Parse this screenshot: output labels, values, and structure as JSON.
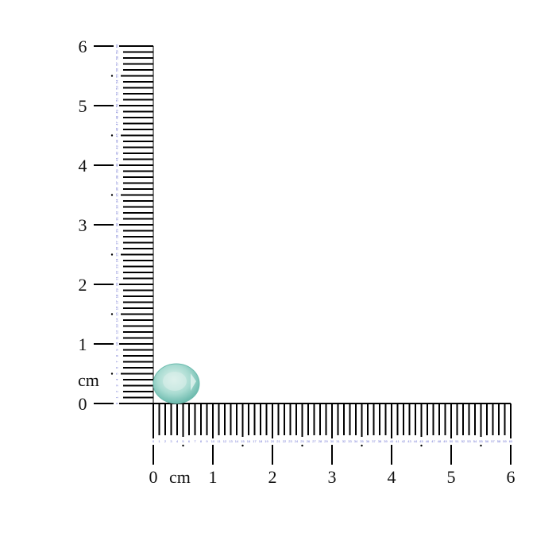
{
  "unit_label": "cm",
  "vertical_ruler": {
    "unit": "cm",
    "labels": [
      "0",
      "1",
      "2",
      "3",
      "4",
      "5",
      "6"
    ],
    "mm_count": 60
  },
  "horizontal_ruler": {
    "unit": "cm",
    "labels": [
      "0",
      "1",
      "2",
      "3",
      "4",
      "5",
      "6"
    ],
    "mm_count": 60
  },
  "gem": {
    "shape": "oval",
    "color": "#9fd6cc",
    "edge_color": "#5fb3a6"
  },
  "colors": {
    "ticks": "#000000",
    "mm_numbers": "#6a6fd0"
  }
}
